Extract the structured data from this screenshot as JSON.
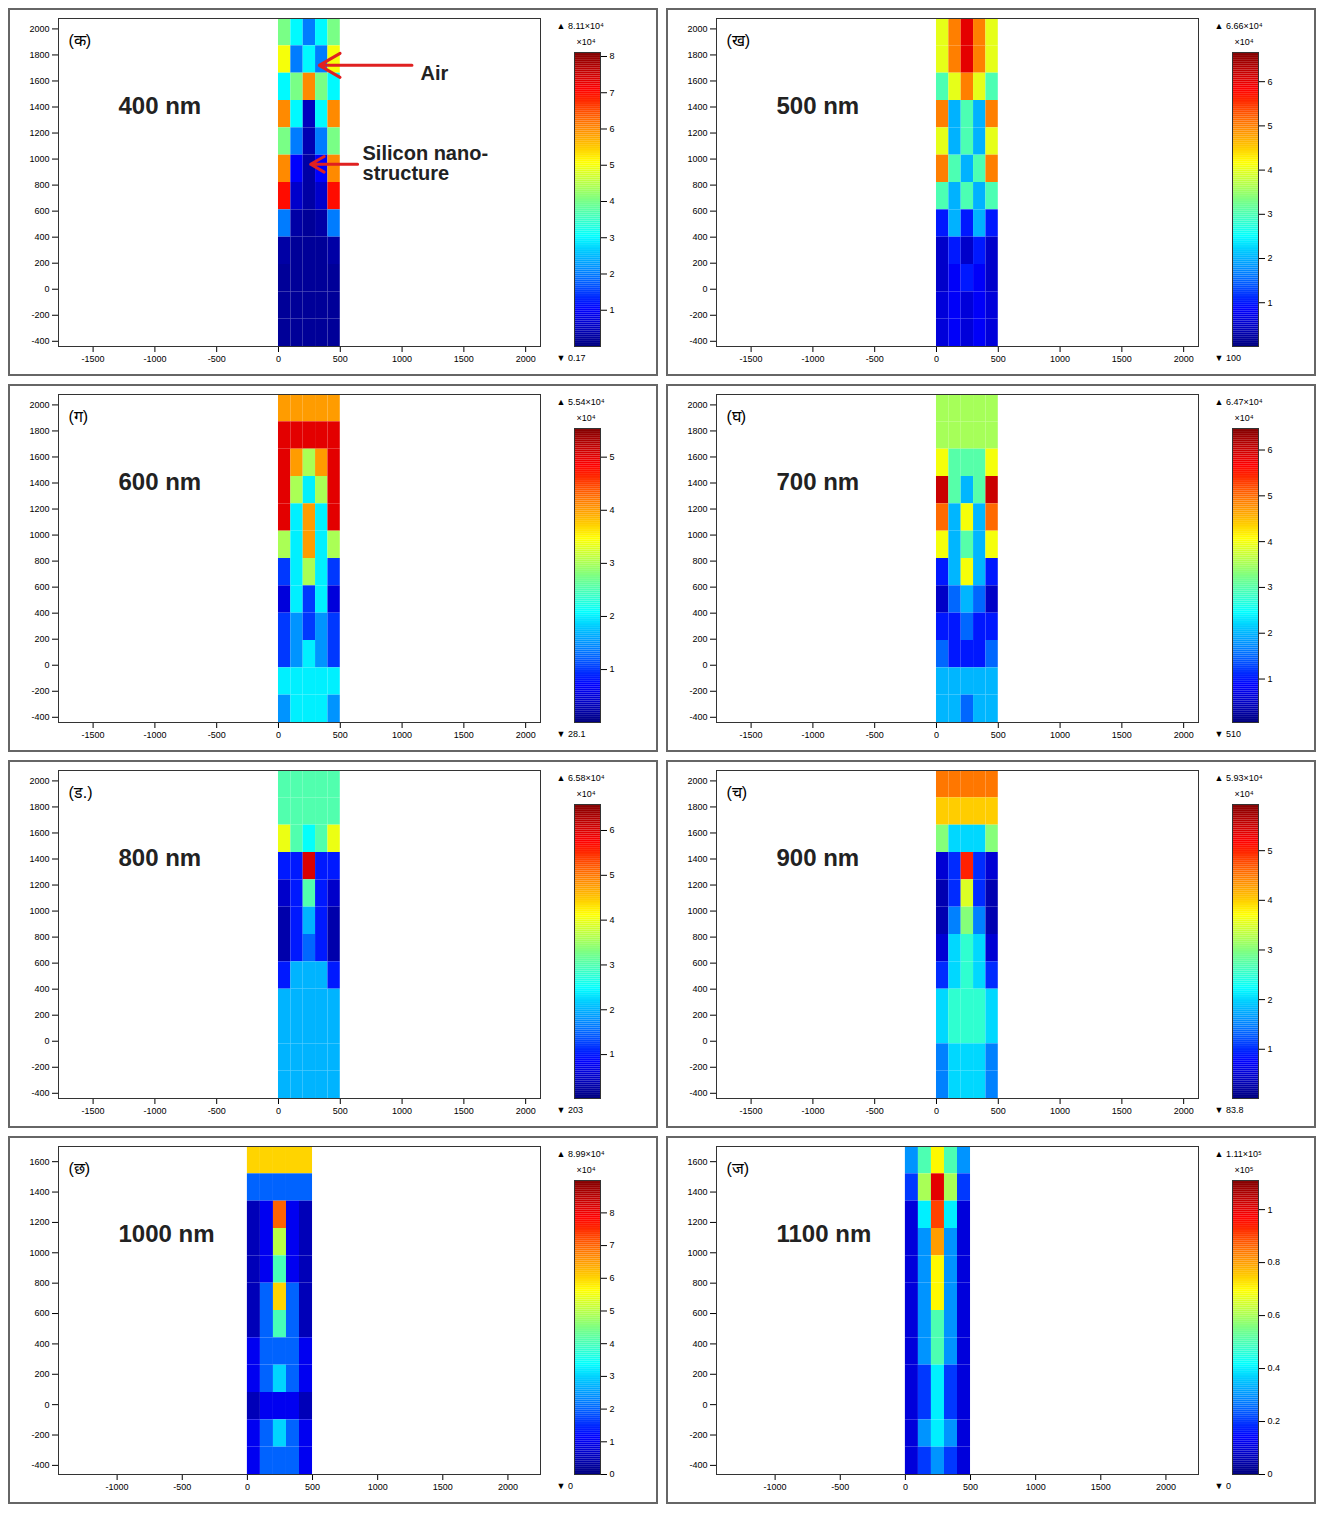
{
  "chart_data": [
    {
      "type": "heatmap",
      "panel_label": "(क)",
      "title": "400 nm",
      "annotations": [
        "Air",
        "Silicon nano-structure"
      ],
      "xlim": [
        -1780,
        2120
      ],
      "xticks": [
        -1500,
        -1000,
        -500,
        0,
        500,
        1000,
        1500,
        2000
      ],
      "ylim": [
        -440,
        2080
      ],
      "yticks": [
        -400,
        -200,
        0,
        200,
        400,
        600,
        800,
        1000,
        1200,
        1400,
        1600,
        1800,
        2000
      ],
      "x_edges": [
        0,
        100,
        200,
        300,
        400,
        500
      ],
      "y_edges": [
        2080,
        1870,
        1660,
        1450,
        1240,
        1030,
        820,
        610,
        400,
        190,
        -20,
        -230,
        -440
      ],
      "cells": [
        [
          4,
          3,
          2,
          3,
          4
        ],
        [
          5,
          2,
          3,
          2,
          5
        ],
        [
          3,
          4,
          6,
          4,
          3
        ],
        [
          6,
          3,
          0.5,
          3,
          6
        ],
        [
          4,
          2,
          0.4,
          2,
          4
        ],
        [
          6,
          1,
          0.3,
          1,
          6
        ],
        [
          7,
          0.6,
          0.3,
          0.6,
          7
        ],
        [
          2,
          0.3,
          0.2,
          0.3,
          2
        ],
        [
          0.3,
          0.2,
          0.2,
          0.2,
          0.3
        ],
        [
          0.2,
          0.2,
          0.2,
          0.2,
          0.2
        ],
        [
          0.2,
          0.2,
          0.2,
          0.2,
          0.2
        ],
        [
          0.2,
          0.2,
          0.2,
          0.2,
          0.2
        ]
      ],
      "color_range": [
        1.7e-05,
        8.11
      ],
      "color_range_labels": [
        "▼ 0.17",
        "▲ 8.11×10⁴"
      ],
      "color_unit": "×10⁴",
      "color_ticks": [
        1,
        2,
        3,
        4,
        5,
        6,
        7,
        8
      ]
    },
    {
      "type": "heatmap",
      "panel_label": "(ख)",
      "title": "500 nm",
      "xlim": [
        -1780,
        2120
      ],
      "xticks": [
        -1500,
        -1000,
        -500,
        0,
        500,
        1000,
        1500,
        2000
      ],
      "ylim": [
        -440,
        2080
      ],
      "yticks": [
        -400,
        -200,
        0,
        200,
        400,
        600,
        800,
        1000,
        1200,
        1400,
        1600,
        1800,
        2000
      ],
      "x_edges": [
        0,
        100,
        200,
        300,
        400,
        500
      ],
      "y_edges": [
        2080,
        1870,
        1660,
        1450,
        1240,
        1030,
        820,
        610,
        400,
        190,
        -20,
        -230,
        -440
      ],
      "cells": [
        [
          4,
          5,
          6,
          5,
          4
        ],
        [
          4,
          5,
          6,
          5,
          4
        ],
        [
          3,
          4,
          5,
          4,
          3
        ],
        [
          5,
          2,
          3,
          2,
          5
        ],
        [
          4,
          2,
          3,
          2,
          4
        ],
        [
          5,
          3,
          2,
          3,
          5
        ],
        [
          3,
          2,
          3,
          2,
          3
        ],
        [
          1,
          2,
          1,
          2,
          1
        ],
        [
          0.5,
          1,
          0.5,
          1,
          0.5
        ],
        [
          0.5,
          0.8,
          1,
          0.8,
          0.5
        ],
        [
          0.6,
          0.8,
          0.6,
          0.8,
          0.6
        ],
        [
          0.6,
          0.8,
          0.6,
          0.8,
          0.6
        ]
      ],
      "color_range": [
        0.01,
        6.66
      ],
      "color_range_labels": [
        "▼ 100",
        "▲ 6.66×10⁴"
      ],
      "color_unit": "×10⁴",
      "color_ticks": [
        1,
        2,
        3,
        4,
        5,
        6
      ]
    },
    {
      "type": "heatmap",
      "panel_label": "(ग)",
      "title": "600 nm",
      "xlim": [
        -1780,
        2120
      ],
      "xticks": [
        -1500,
        -1000,
        -500,
        0,
        500,
        1000,
        1500,
        2000
      ],
      "ylim": [
        -440,
        2080
      ],
      "yticks": [
        -400,
        -200,
        0,
        200,
        400,
        600,
        800,
        1000,
        1200,
        1400,
        1600,
        1800,
        2000
      ],
      "x_edges": [
        0,
        100,
        200,
        300,
        400,
        500
      ],
      "y_edges": [
        2080,
        1870,
        1660,
        1450,
        1240,
        1030,
        820,
        610,
        400,
        190,
        -20,
        -230,
        -440
      ],
      "cells": [
        [
          4,
          4,
          4,
          4,
          4
        ],
        [
          5,
          5,
          5,
          5,
          5
        ],
        [
          5,
          4,
          3,
          4,
          5
        ],
        [
          5,
          3,
          2,
          3,
          5
        ],
        [
          5,
          2,
          4,
          2,
          5
        ],
        [
          3,
          2,
          4,
          2,
          3
        ],
        [
          1,
          2,
          3,
          2,
          1
        ],
        [
          0.5,
          2,
          1,
          2,
          0.5
        ],
        [
          1,
          1.5,
          1,
          1.5,
          1
        ],
        [
          1,
          1.5,
          2,
          1.5,
          1
        ],
        [
          2,
          2,
          2,
          2,
          2
        ],
        [
          1.5,
          2,
          2,
          2,
          1.5
        ]
      ],
      "color_range": [
        0.00281,
        5.54
      ],
      "color_range_labels": [
        "▼ 28.1",
        "▲ 5.54×10⁴"
      ],
      "color_unit": "×10⁴",
      "color_ticks": [
        1,
        2,
        3,
        4,
        5
      ]
    },
    {
      "type": "heatmap",
      "panel_label": "(घ)",
      "title": "700 nm",
      "xlim": [
        -1780,
        2120
      ],
      "xticks": [
        -1500,
        -1000,
        -500,
        0,
        500,
        1000,
        1500,
        2000
      ],
      "ylim": [
        -440,
        2080
      ],
      "yticks": [
        -400,
        -200,
        0,
        200,
        400,
        600,
        800,
        1000,
        1200,
        1400,
        1600,
        1800,
        2000
      ],
      "x_edges": [
        0,
        100,
        200,
        300,
        400,
        500
      ],
      "y_edges": [
        2080,
        1870,
        1660,
        1450,
        1240,
        1030,
        820,
        610,
        400,
        190,
        -20,
        -230,
        -440
      ],
      "cells": [
        [
          3.5,
          3.5,
          3.5,
          3.5,
          3.5
        ],
        [
          3.5,
          3.5,
          3.5,
          3.5,
          3.5
        ],
        [
          4,
          3,
          3,
          3,
          4
        ],
        [
          6,
          3,
          2,
          3,
          6
        ],
        [
          5,
          2,
          4,
          2,
          5
        ],
        [
          4,
          2,
          3,
          2,
          4
        ],
        [
          1,
          2,
          4,
          2,
          1
        ],
        [
          0.5,
          1.5,
          2,
          1.5,
          0.5
        ],
        [
          1,
          1,
          1.5,
          1,
          1
        ],
        [
          1.5,
          1,
          1,
          1,
          1.5
        ],
        [
          2,
          2,
          2,
          2,
          2
        ],
        [
          2,
          2,
          1.5,
          2,
          2
        ]
      ],
      "color_range": [
        0.051,
        6.47
      ],
      "color_range_labels": [
        "▼ 510",
        "▲ 6.47×10⁴"
      ],
      "color_unit": "×10⁴",
      "color_ticks": [
        1,
        2,
        3,
        4,
        5,
        6
      ]
    },
    {
      "type": "heatmap",
      "panel_label": "(ड.)",
      "title": "800 nm",
      "xlim": [
        -1780,
        2120
      ],
      "xticks": [
        -1500,
        -1000,
        -500,
        0,
        500,
        1000,
        1500,
        2000
      ],
      "ylim": [
        -440,
        2080
      ],
      "yticks": [
        -400,
        -200,
        0,
        200,
        400,
        600,
        800,
        1000,
        1200,
        1400,
        1600,
        1800,
        2000
      ],
      "x_edges": [
        0,
        100,
        200,
        300,
        400,
        500
      ],
      "y_edges": [
        2080,
        1870,
        1660,
        1450,
        1240,
        1030,
        820,
        610,
        400,
        190,
        -20,
        -230,
        -440
      ],
      "cells": [
        [
          3,
          3,
          3,
          3,
          3
        ],
        [
          3,
          3,
          3,
          3,
          3
        ],
        [
          4,
          3,
          2.5,
          3,
          4
        ],
        [
          1,
          1,
          6,
          1,
          1
        ],
        [
          0.5,
          1,
          3,
          1,
          0.5
        ],
        [
          0.3,
          1,
          2,
          1,
          0.3
        ],
        [
          0.3,
          1,
          1.5,
          1,
          0.3
        ],
        [
          1,
          2,
          2,
          2,
          1
        ],
        [
          2,
          2,
          2,
          2,
          2
        ],
        [
          2,
          2,
          2,
          2,
          2
        ],
        [
          2,
          2,
          2,
          2,
          2
        ],
        [
          2,
          2,
          2,
          2,
          2
        ]
      ],
      "color_range": [
        0.0203,
        6.58
      ],
      "color_range_labels": [
        "▼ 203",
        "▲ 6.58×10⁴"
      ],
      "color_unit": "×10⁴",
      "color_ticks": [
        1,
        2,
        3,
        4,
        5,
        6
      ]
    },
    {
      "type": "heatmap",
      "panel_label": "(च)",
      "title": "900 nm",
      "xlim": [
        -1780,
        2120
      ],
      "xticks": [
        -1500,
        -1000,
        -500,
        0,
        500,
        1000,
        1500,
        2000
      ],
      "ylim": [
        -440,
        2080
      ],
      "yticks": [
        -400,
        -200,
        0,
        200,
        400,
        600,
        800,
        1000,
        1200,
        1400,
        1600,
        1800,
        2000
      ],
      "x_edges": [
        0,
        100,
        200,
        300,
        400,
        500
      ],
      "y_edges": [
        2080,
        1870,
        1660,
        1450,
        1240,
        1030,
        820,
        610,
        400,
        190,
        -20,
        -230,
        -440
      ],
      "cells": [
        [
          4.5,
          4.5,
          4.5,
          4.5,
          4.5
        ],
        [
          4,
          4,
          4,
          4,
          4
        ],
        [
          3,
          2,
          2,
          2,
          3
        ],
        [
          0.5,
          1,
          5,
          1,
          0.5
        ],
        [
          0.3,
          1,
          3.5,
          1,
          0.3
        ],
        [
          0.3,
          1.5,
          3,
          1.5,
          0.3
        ],
        [
          0.5,
          2,
          2.5,
          2,
          0.5
        ],
        [
          1,
          2,
          2.5,
          2,
          1
        ],
        [
          2,
          2.5,
          2.5,
          2.5,
          2
        ],
        [
          2,
          2.5,
          2.5,
          2.5,
          2
        ],
        [
          1.5,
          2,
          2,
          2,
          1.5
        ],
        [
          1.5,
          2,
          2,
          2,
          1.5
        ]
      ],
      "color_range": [
        0.00838,
        5.93
      ],
      "color_range_labels": [
        "▼ 83.8",
        "▲ 5.93×10⁴"
      ],
      "color_unit": "×10⁴",
      "color_ticks": [
        1,
        2,
        3,
        4,
        5
      ]
    },
    {
      "type": "heatmap",
      "panel_label": "(छ)",
      "title": "1000 nm",
      "xlim": [
        -1450,
        2250
      ],
      "xticks": [
        -1000,
        -500,
        0,
        500,
        1000,
        1500,
        2000
      ],
      "ylim": [
        -460,
        1700
      ],
      "yticks": [
        -400,
        -200,
        0,
        200,
        400,
        600,
        800,
        1000,
        1200,
        1400,
        1600
      ],
      "x_edges": [
        0,
        100,
        200,
        300,
        400,
        500
      ],
      "y_edges": [
        1700,
        1520,
        1340,
        1160,
        980,
        800,
        620,
        440,
        260,
        80,
        -100,
        -280,
        -460
      ],
      "cells": [
        [
          6,
          6,
          6,
          6,
          6
        ],
        [
          2,
          2,
          2,
          2,
          2
        ],
        [
          0.5,
          1,
          7,
          1,
          0.5
        ],
        [
          0.5,
          1,
          5,
          1,
          0.5
        ],
        [
          0.5,
          1,
          4,
          1,
          0.5
        ],
        [
          0.5,
          2,
          6,
          2,
          0.5
        ],
        [
          0.5,
          2,
          4,
          2,
          0.5
        ],
        [
          1,
          2,
          2,
          2,
          1
        ],
        [
          1,
          2,
          3,
          2,
          1
        ],
        [
          0.5,
          1,
          1,
          1,
          0.5
        ],
        [
          1,
          2,
          3,
          2,
          1
        ],
        [
          1,
          2,
          2,
          2,
          1
        ]
      ],
      "color_range": [
        0,
        8.99
      ],
      "color_range_labels": [
        "▼ 0",
        "▲ 8.99×10⁴"
      ],
      "color_unit": "×10⁴",
      "color_ticks": [
        0,
        1,
        2,
        3,
        4,
        5,
        6,
        7,
        8
      ]
    },
    {
      "type": "heatmap",
      "panel_label": "(ज)",
      "title": "1100 nm",
      "xlim": [
        -1450,
        2250
      ],
      "xticks": [
        -1000,
        -500,
        0,
        500,
        1000,
        1500,
        2000
      ],
      "ylim": [
        -460,
        1700
      ],
      "yticks": [
        -400,
        -200,
        0,
        200,
        400,
        600,
        800,
        1000,
        1200,
        1400,
        1600
      ],
      "x_edges": [
        0,
        100,
        200,
        300,
        400,
        500
      ],
      "y_edges": [
        1700,
        1520,
        1340,
        1160,
        980,
        800,
        620,
        440,
        260,
        80,
        -100,
        -280,
        -460
      ],
      "cells": [
        [
          0.3,
          0.5,
          0.7,
          0.5,
          0.3
        ],
        [
          0.2,
          0.6,
          1.0,
          0.6,
          0.2
        ],
        [
          0.1,
          0.4,
          0.9,
          0.4,
          0.1
        ],
        [
          0.1,
          0.3,
          0.8,
          0.3,
          0.1
        ],
        [
          0.1,
          0.3,
          0.7,
          0.3,
          0.1
        ],
        [
          0.1,
          0.3,
          0.7,
          0.3,
          0.1
        ],
        [
          0.1,
          0.3,
          0.5,
          0.3,
          0.1
        ],
        [
          0.1,
          0.3,
          0.5,
          0.3,
          0.1
        ],
        [
          0.1,
          0.2,
          0.4,
          0.2,
          0.1
        ],
        [
          0.1,
          0.2,
          0.4,
          0.2,
          0.1
        ],
        [
          0.1,
          0.3,
          0.4,
          0.3,
          0.1
        ],
        [
          0.1,
          0.2,
          0.3,
          0.2,
          0.1
        ]
      ],
      "color_range": [
        0,
        1.11
      ],
      "color_range_labels": [
        "▼ 0",
        "▲ 1.11×10⁵"
      ],
      "color_unit": "×10⁵",
      "color_ticks": [
        0,
        0.2,
        0.4,
        0.6,
        0.8,
        1
      ]
    }
  ]
}
